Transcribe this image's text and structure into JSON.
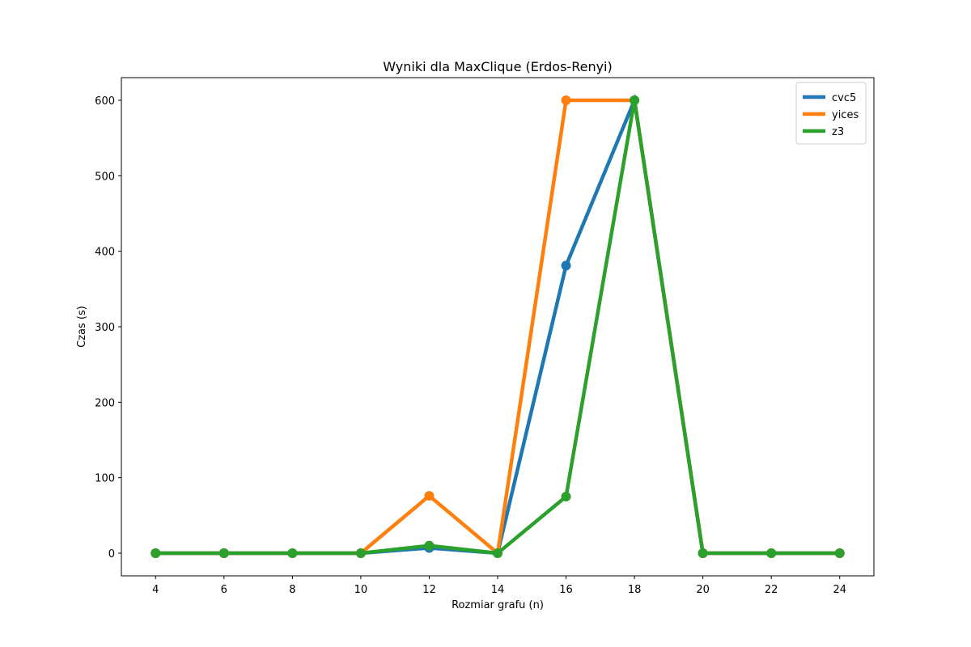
{
  "chart_data": {
    "type": "line",
    "title": "Wyniki dla MaxClique (Erdos-Renyi)",
    "xlabel": "Rozmiar grafu (n)",
    "ylabel": "Czas (s)",
    "x": [
      4,
      6,
      8,
      10,
      12,
      14,
      16,
      18,
      20,
      22,
      24
    ],
    "x_ticks": [
      4,
      6,
      8,
      10,
      12,
      14,
      16,
      18,
      20,
      22,
      24
    ],
    "y_ticks": [
      0,
      100,
      200,
      300,
      400,
      500,
      600
    ],
    "xlim": [
      3,
      25
    ],
    "ylim": [
      -30,
      630
    ],
    "grid": false,
    "legend_position": "top-right",
    "series": [
      {
        "name": "cvc5",
        "color": "#1f77b4",
        "values": [
          0,
          0,
          0,
          0,
          7,
          0,
          381,
          600,
          0,
          0,
          0
        ]
      },
      {
        "name": "yices",
        "color": "#ff7f0e",
        "values": [
          0,
          0,
          0,
          0,
          76,
          0,
          600,
          600,
          0,
          0,
          0
        ]
      },
      {
        "name": "z3",
        "color": "#2ca02c",
        "values": [
          0,
          0,
          0,
          0,
          10,
          0,
          75,
          600,
          0,
          0,
          0
        ]
      }
    ]
  }
}
